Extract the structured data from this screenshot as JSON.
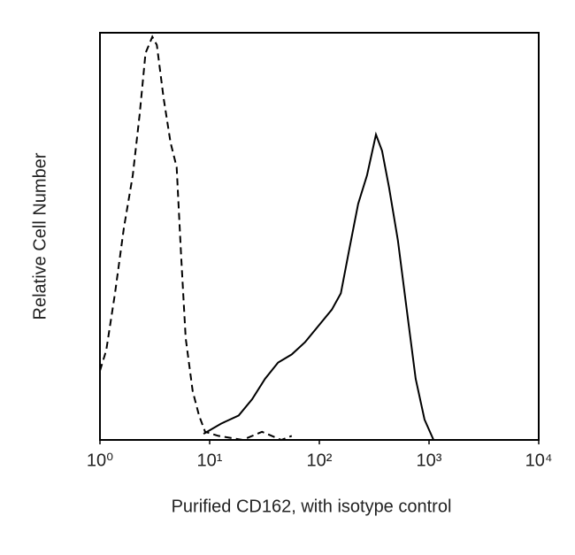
{
  "chart_data": {
    "type": "line",
    "xlabel": "Purified CD162, with isotype control",
    "ylabel": "Relative Cell Number",
    "xscale": "log",
    "xlim": [
      1,
      10000
    ],
    "ylim": [
      0,
      100
    ],
    "xticks": [
      {
        "value": 1,
        "label": "10⁰"
      },
      {
        "value": 10,
        "label": "10¹"
      },
      {
        "value": 100,
        "label": "10²"
      },
      {
        "value": 1000,
        "label": "10³"
      },
      {
        "value": 10000,
        "label": "10⁴"
      }
    ],
    "series": [
      {
        "color": "#000000",
        "style": "dashed",
        "x": [
          1,
          1.14,
          1.37,
          1.65,
          1.99,
          2.3,
          2.6,
          3.0,
          3.3,
          3.8,
          4.4,
          5.0,
          5.5,
          6.05,
          7.0,
          8.0,
          9.1,
          12,
          20,
          30,
          45,
          56
        ],
        "values": [
          17,
          22,
          36,
          52,
          65,
          80,
          95,
          99,
          97,
          84,
          73,
          67,
          45,
          25,
          12,
          6,
          2,
          1,
          0,
          2,
          0,
          1
        ]
      },
      {
        "color": "#000000",
        "style": "solid",
        "x": [
          8.8,
          12.7,
          18.4,
          24.4,
          32,
          42,
          56,
          74,
          98,
          130,
          157,
          188,
          226,
          272,
          328,
          373,
          432,
          520,
          626,
          756,
          910,
          1100
        ],
        "values": [
          1.5,
          4,
          6,
          10,
          15,
          19,
          21,
          24,
          28,
          32,
          36,
          47,
          58,
          65,
          75,
          71,
          62,
          49,
          32,
          15,
          5,
          0
        ]
      }
    ]
  }
}
